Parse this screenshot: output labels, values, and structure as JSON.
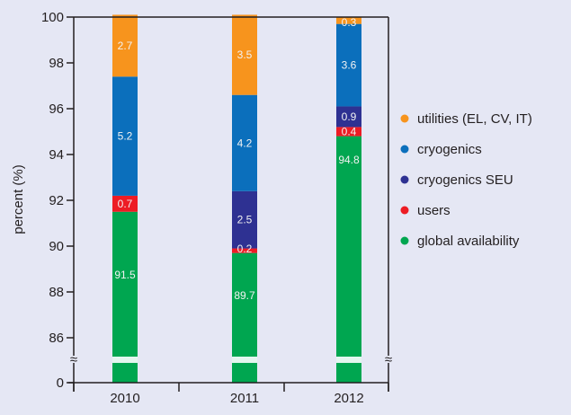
{
  "chart_data": {
    "type": "bar",
    "stacked": true,
    "title": "",
    "xlabel": "",
    "ylabel": "percent (%)",
    "ylim": [
      86,
      100
    ],
    "axis_break": true,
    "y_ticks": [
      100,
      98,
      96,
      94,
      92,
      90,
      88,
      86,
      0
    ],
    "grid": false,
    "legend_position": "right",
    "categories": [
      "2010",
      "2011",
      "2012"
    ],
    "series": [
      {
        "name": "global availability",
        "color": "#00a650",
        "values": [
          91.5,
          89.7,
          94.8
        ]
      },
      {
        "name": "users",
        "color": "#ed1c24",
        "values": [
          0.7,
          0.2,
          0.4
        ]
      },
      {
        "name": "cryogenics SEU",
        "color": "#2e3192",
        "values": [
          0,
          2.5,
          0.9
        ]
      },
      {
        "name": "cryogenics",
        "color": "#0b6fbc",
        "values": [
          5.2,
          4.2,
          3.6
        ]
      },
      {
        "name": "utilities (EL, CV, IT)",
        "color": "#f7941d",
        "values": [
          2.7,
          3.5,
          0.3
        ]
      }
    ],
    "legend_order": [
      "utilities (EL, CV, IT)",
      "cryogenics",
      "cryogenics SEU",
      "users",
      "global availability"
    ]
  }
}
